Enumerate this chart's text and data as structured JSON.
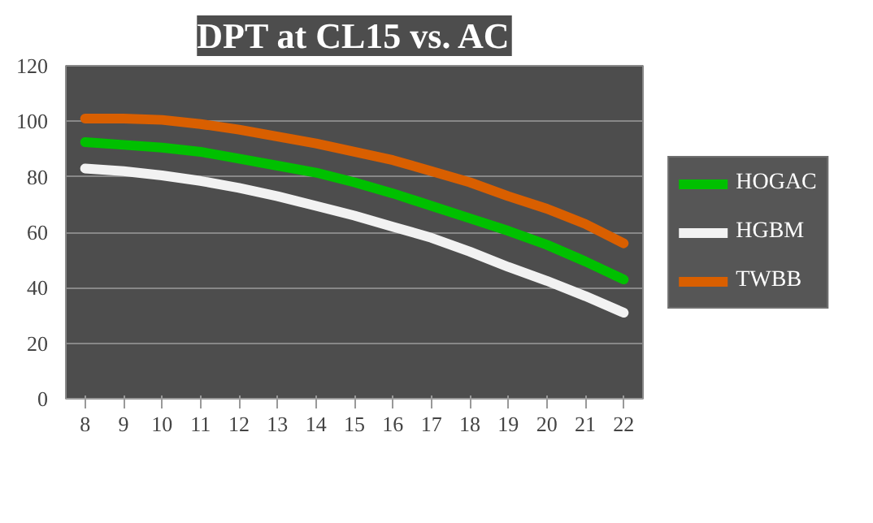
{
  "chart_data": {
    "type": "line",
    "title": "DPT at CL15 vs. AC",
    "categories": [
      "8",
      "9",
      "10",
      "11",
      "12",
      "13",
      "14",
      "15",
      "16",
      "17",
      "18",
      "19",
      "20",
      "21",
      "22"
    ],
    "ylim": [
      0,
      120
    ],
    "yticks": [
      0,
      20,
      40,
      60,
      80,
      100,
      120
    ],
    "grid": "y",
    "legend": "right",
    "marker": "none",
    "line_style": "solid",
    "series": [
      {
        "name": "HOGAC",
        "color": "#00c000",
        "values": [
          92.5,
          91.5,
          90.5,
          89,
          86.5,
          84,
          81.5,
          78,
          74,
          69.5,
          65,
          60.5,
          55.5,
          49.5,
          43
        ]
      },
      {
        "name": "HGBM",
        "color": "#f2f2f2",
        "values": [
          83,
          82,
          80.5,
          78.5,
          76,
          73,
          69.5,
          66,
          62,
          58,
          53,
          47.5,
          42.5,
          37,
          31
        ]
      },
      {
        "name": "TWBB",
        "color": "#d95f00",
        "values": [
          101,
          101,
          100.5,
          99,
          97,
          94.5,
          92,
          89,
          86,
          82,
          78,
          73,
          68.5,
          63,
          56
        ]
      }
    ]
  }
}
